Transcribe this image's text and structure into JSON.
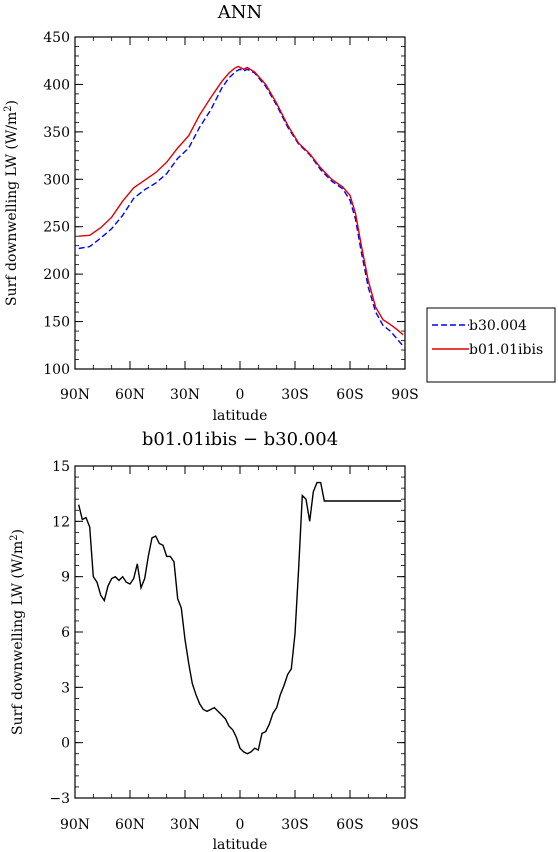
{
  "chart_data": [
    {
      "type": "line",
      "title": "ANN",
      "xlabel": "latitude",
      "ylabel": "Surf downwelling LW (W/m~S~2~N~)",
      "xlim": [
        90,
        -90
      ],
      "ylim": [
        100,
        450
      ],
      "yticks": [
        100,
        150,
        200,
        250,
        300,
        350,
        400,
        450
      ],
      "xtick_values": [
        90,
        60,
        30,
        0,
        -30,
        -60,
        -90
      ],
      "xtick_labels": [
        "90N",
        "60N",
        "30N",
        "0",
        "30S",
        "60S",
        "90S"
      ],
      "legend": "outside-right",
      "series": [
        {
          "name": "b30.004",
          "style": "dashed",
          "color": "#0000ff",
          "x": [
            88,
            82,
            76,
            70,
            64,
            58,
            52,
            46,
            40,
            34,
            28,
            22,
            16,
            10,
            6,
            2,
            0,
            -2,
            -4,
            -8,
            -14,
            -20,
            -26,
            -32,
            -38,
            -44,
            -50,
            -56,
            -60,
            -63,
            -66,
            -70,
            -74,
            -78,
            -82,
            -86,
            -89
          ],
          "y": [
            227,
            229,
            238,
            248,
            262,
            280,
            289,
            296,
            306,
            322,
            333,
            355,
            373,
            396,
            407,
            414,
            416,
            414,
            416,
            412,
            398,
            378,
            355,
            337,
            326,
            310,
            298,
            290,
            278,
            258,
            225,
            186,
            160,
            146,
            140,
            131,
            124
          ]
        },
        {
          "name": "b01.01ibis",
          "style": "solid",
          "color": "#e00000",
          "x": [
            88,
            82,
            76,
            70,
            64,
            58,
            52,
            46,
            40,
            34,
            28,
            22,
            16,
            10,
            6,
            3,
            1,
            -2,
            -4,
            -8,
            -14,
            -20,
            -26,
            -32,
            -38,
            -44,
            -50,
            -56,
            -60,
            -63,
            -66,
            -70,
            -74,
            -78,
            -82,
            -86,
            -89
          ],
          "y": [
            240,
            241,
            249,
            260,
            277,
            291,
            299,
            307,
            318,
            333,
            346,
            368,
            386,
            403,
            412,
            417,
            419,
            416,
            418,
            413,
            400,
            380,
            357,
            338,
            327,
            312,
            300,
            292,
            283,
            264,
            232,
            193,
            165,
            152,
            147,
            141,
            136
          ]
        }
      ]
    },
    {
      "type": "line",
      "title": "b01.01ibis − b30.004",
      "xlabel": "latitude",
      "ylabel": "Surf downwelling LW (W/m~S~2~N~)",
      "xlim": [
        90,
        -90
      ],
      "ylim": [
        -3,
        15
      ],
      "yticks": [
        -3,
        0,
        3,
        6,
        9,
        12,
        15
      ],
      "xtick_values": [
        90,
        60,
        30,
        0,
        -30,
        -60,
        -90
      ],
      "xtick_labels": [
        "90N",
        "60N",
        "30N",
        "0",
        "30S",
        "60S",
        "90S"
      ],
      "series": [
        {
          "style": "solid",
          "color": "#000000",
          "x": [
            88,
            86,
            84,
            82,
            80,
            78,
            76,
            74,
            72,
            70,
            68,
            66,
            64,
            62,
            60,
            58,
            56,
            54,
            52,
            50,
            48,
            46,
            44,
            42,
            40,
            38,
            36,
            34,
            32,
            30,
            28,
            26,
            24,
            22,
            20,
            18,
            16,
            14,
            12,
            10,
            8,
            6,
            4,
            2,
            0,
            -2,
            -4,
            -6,
            -8,
            -10,
            -12,
            -14,
            -16,
            -18,
            -20,
            -22,
            -24,
            -26,
            -28,
            -30,
            -32,
            -34,
            -36,
            -38,
            -40,
            -42,
            -44,
            -46,
            -48,
            -50,
            -52,
            -54,
            -56,
            -58,
            -60,
            -62,
            -64,
            -66,
            -68,
            -70,
            -72,
            -74,
            -76,
            -78,
            -80,
            -82,
            -84,
            -86,
            -88
          ],
          "y": [
            12.9,
            12.1,
            12.2,
            11.7,
            9.0,
            8.7,
            8.0,
            7.7,
            8.5,
            8.9,
            9.0,
            8.8,
            9.0,
            8.7,
            8.6,
            8.9,
            9.7,
            8.4,
            8.9,
            10.1,
            11.1,
            11.2,
            10.8,
            10.7,
            10.1,
            10.1,
            9.8,
            7.8,
            7.3,
            5.6,
            4.3,
            3.2,
            2.6,
            2.1,
            1.8,
            1.7,
            1.8,
            1.9,
            1.7,
            1.5,
            1.3,
            0.9,
            0.7,
            0.3,
            -0.3,
            -0.5,
            -0.6,
            -0.5,
            -0.3,
            -0.4,
            0.5,
            0.6,
            1.0,
            1.6,
            1.9,
            2.6,
            3.1,
            3.7,
            4.0,
            5.9,
            9.5,
            13.4,
            13.2,
            12.0,
            13.6,
            14.1,
            14.1,
            13.1,
            13.1,
            13.1,
            13.1,
            13.1,
            13.1,
            13.1,
            13.1,
            13.1,
            13.1,
            13.1,
            13.1,
            13.1,
            13.1,
            13.1,
            13.1,
            13.1,
            13.1,
            13.1,
            13.1,
            13.1,
            13.1
          ]
        }
      ]
    }
  ]
}
